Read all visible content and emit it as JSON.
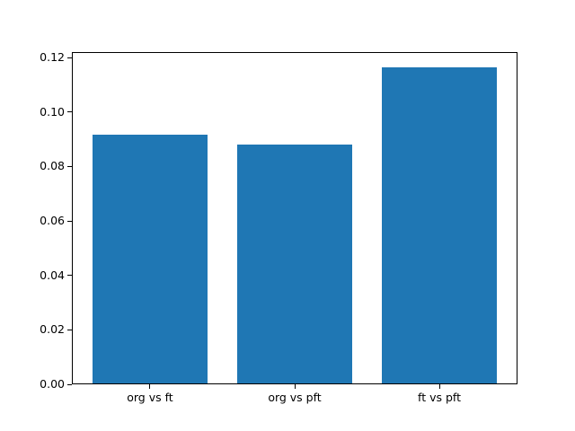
{
  "chart_data": {
    "type": "bar",
    "title": "",
    "xlabel": "",
    "ylabel": "",
    "categories": [
      "org vs ft",
      "org vs pft",
      "ft vs pft"
    ],
    "values": [
      0.0915,
      0.0878,
      0.1162
    ],
    "bar_color": "#1f77b4",
    "axis_color": "#000000",
    "background_color": "#ffffff",
    "ylim": [
      0,
      0.122
    ],
    "yticks": [
      0.0,
      0.02,
      0.04,
      0.06,
      0.08,
      0.1,
      0.12
    ],
    "ytick_labels": [
      "0.00",
      "0.02",
      "0.04",
      "0.06",
      "0.08",
      "0.10",
      "0.12"
    ],
    "grid": false,
    "legend": null
  }
}
